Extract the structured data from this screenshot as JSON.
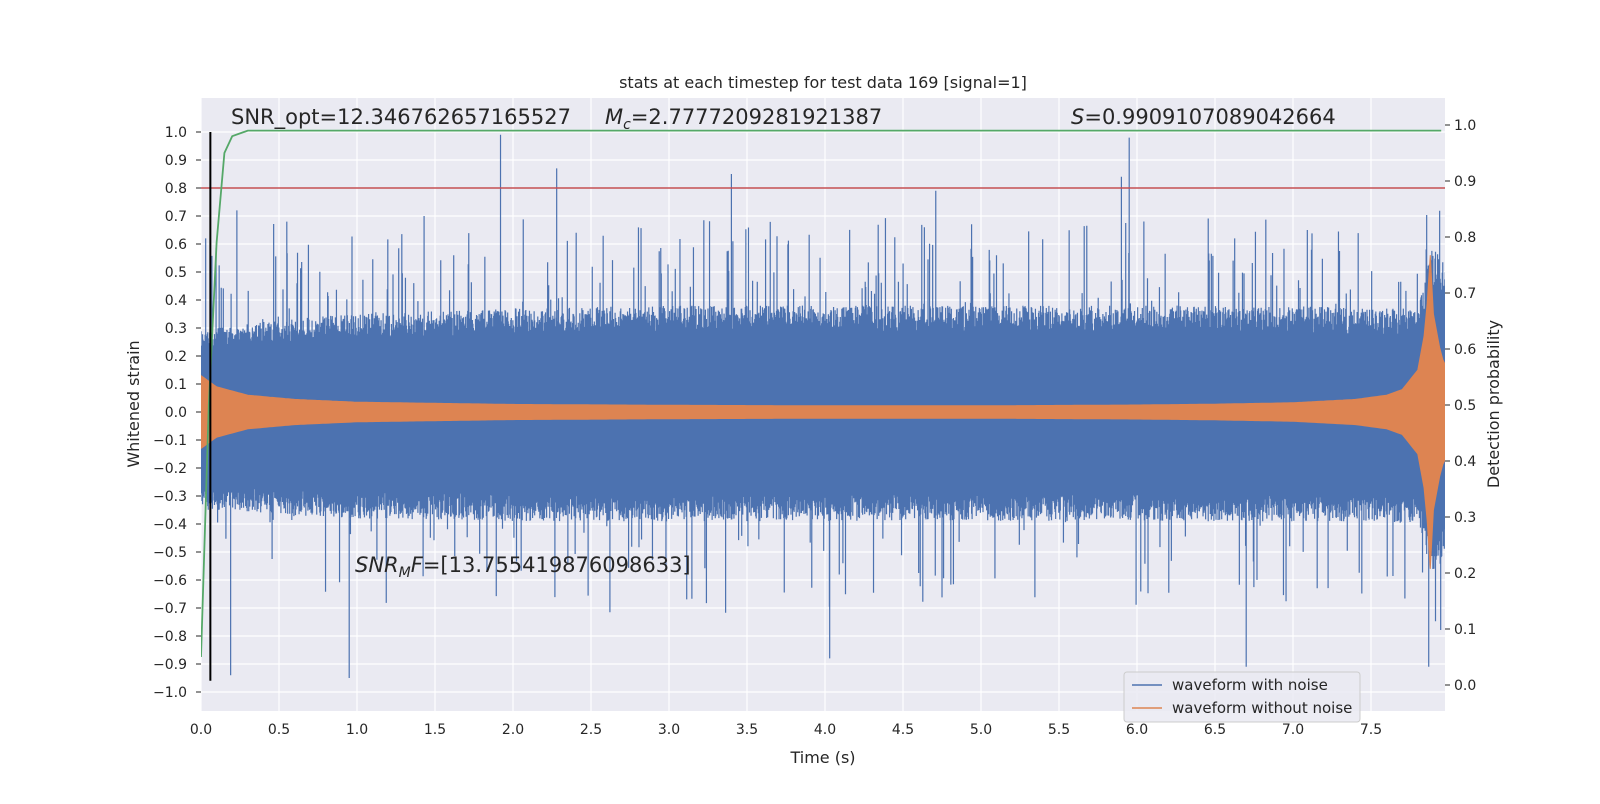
{
  "chart_data": {
    "type": "line",
    "title": "stats at each timestep for test data 169 [signal=1]",
    "xlabel": "Time (s)",
    "ylabel_left": "Whitened strain",
    "ylabel_right": "Detection probability",
    "xlim": [
      0.0,
      8.0
    ],
    "ylim_left": [
      -1.05,
      1.05
    ],
    "ylim_right": [
      -0.1,
      1.05
    ],
    "x_ticks": [
      "0.0",
      "0.5",
      "1.0",
      "1.5",
      "2.0",
      "2.5",
      "3.0",
      "3.5",
      "4.0",
      "4.5",
      "5.0",
      "5.5",
      "6.0",
      "6.5",
      "7.0",
      "7.5"
    ],
    "y_left_ticks": [
      "1.0",
      "0.9",
      "0.8",
      "0.7",
      "0.6",
      "0.5",
      "0.4",
      "0.3",
      "0.2",
      "0.1",
      "0.0",
      "−0.1",
      "−0.2",
      "−0.3",
      "−0.4",
      "−0.5",
      "−0.6",
      "−0.7",
      "−0.8",
      "−0.9",
      "−1.0"
    ],
    "y_right_ticks": [
      "1.0",
      "0.9",
      "0.8",
      "0.7",
      "0.6",
      "0.5",
      "0.4",
      "0.3",
      "0.2",
      "0.1",
      "0.0"
    ],
    "grid": true,
    "legend_position": "bottom-right",
    "annotations": {
      "snr_opt": "SNR_opt=12.346762657165527",
      "mc": "=2.7777209281921387",
      "s": "=0.9909107089042664",
      "snr_mf": "=[13.755419876098633]"
    },
    "threshold_line": {
      "y_left": 0.8,
      "color": "#c44e52"
    },
    "marker_line": {
      "x": 0.06,
      "y_from": -0.96,
      "y_to": 1.0,
      "color": "#000000"
    },
    "series": [
      {
        "name": "waveform with noise",
        "color": "#4c72b0",
        "envelope_t": [
          0.0,
          0.1,
          0.5,
          1.0,
          2.0,
          3.0,
          4.0,
          5.0,
          6.0,
          7.0,
          7.5,
          7.8,
          7.9,
          8.0
        ],
        "envelope_upper": [
          0.3,
          0.3,
          0.33,
          0.35,
          0.37,
          0.38,
          0.38,
          0.38,
          0.38,
          0.38,
          0.37,
          0.37,
          0.6,
          0.5
        ],
        "envelope_lower": [
          -0.35,
          -0.35,
          -0.37,
          -0.38,
          -0.39,
          -0.39,
          -0.39,
          -0.39,
          -0.39,
          -0.39,
          -0.39,
          -0.4,
          -0.6,
          -0.5
        ],
        "peaks_t": [
          0.03,
          0.06,
          0.19,
          0.23,
          0.55,
          0.95,
          1.43,
          1.92,
          2.28,
          3.4,
          4.03,
          4.71,
          5.9,
          5.95,
          6.7,
          7.87
        ],
        "peaks_y": [
          0.62,
          -0.73,
          -0.94,
          0.72,
          0.68,
          -0.95,
          0.7,
          0.99,
          0.87,
          0.85,
          -0.88,
          0.79,
          0.84,
          0.98,
          -0.91,
          -0.91
        ]
      },
      {
        "name": "waveform without noise",
        "color": "#dd8452",
        "amp_t": [
          0.0,
          0.1,
          0.3,
          0.6,
          1.0,
          2.0,
          3.0,
          4.0,
          5.0,
          6.0,
          6.5,
          7.0,
          7.4,
          7.6,
          7.7,
          7.8,
          7.85,
          7.88,
          7.9,
          7.95,
          8.0
        ],
        "amp": [
          0.13,
          0.09,
          0.06,
          0.045,
          0.035,
          0.027,
          0.024,
          0.022,
          0.022,
          0.025,
          0.028,
          0.033,
          0.045,
          0.06,
          0.08,
          0.15,
          0.3,
          0.56,
          0.35,
          0.2,
          0.14
        ]
      },
      {
        "name": "",
        "color": "#55a868",
        "axis": "right",
        "x": [
          0.0,
          0.05,
          0.1,
          0.15,
          0.2,
          0.25,
          0.3,
          1.0,
          3.0,
          5.0,
          7.0,
          7.95
        ],
        "y": [
          0.05,
          0.5,
          0.79,
          0.95,
          0.98,
          0.985,
          0.99,
          0.99,
          0.99,
          0.99,
          0.99,
          0.99
        ]
      }
    ]
  }
}
